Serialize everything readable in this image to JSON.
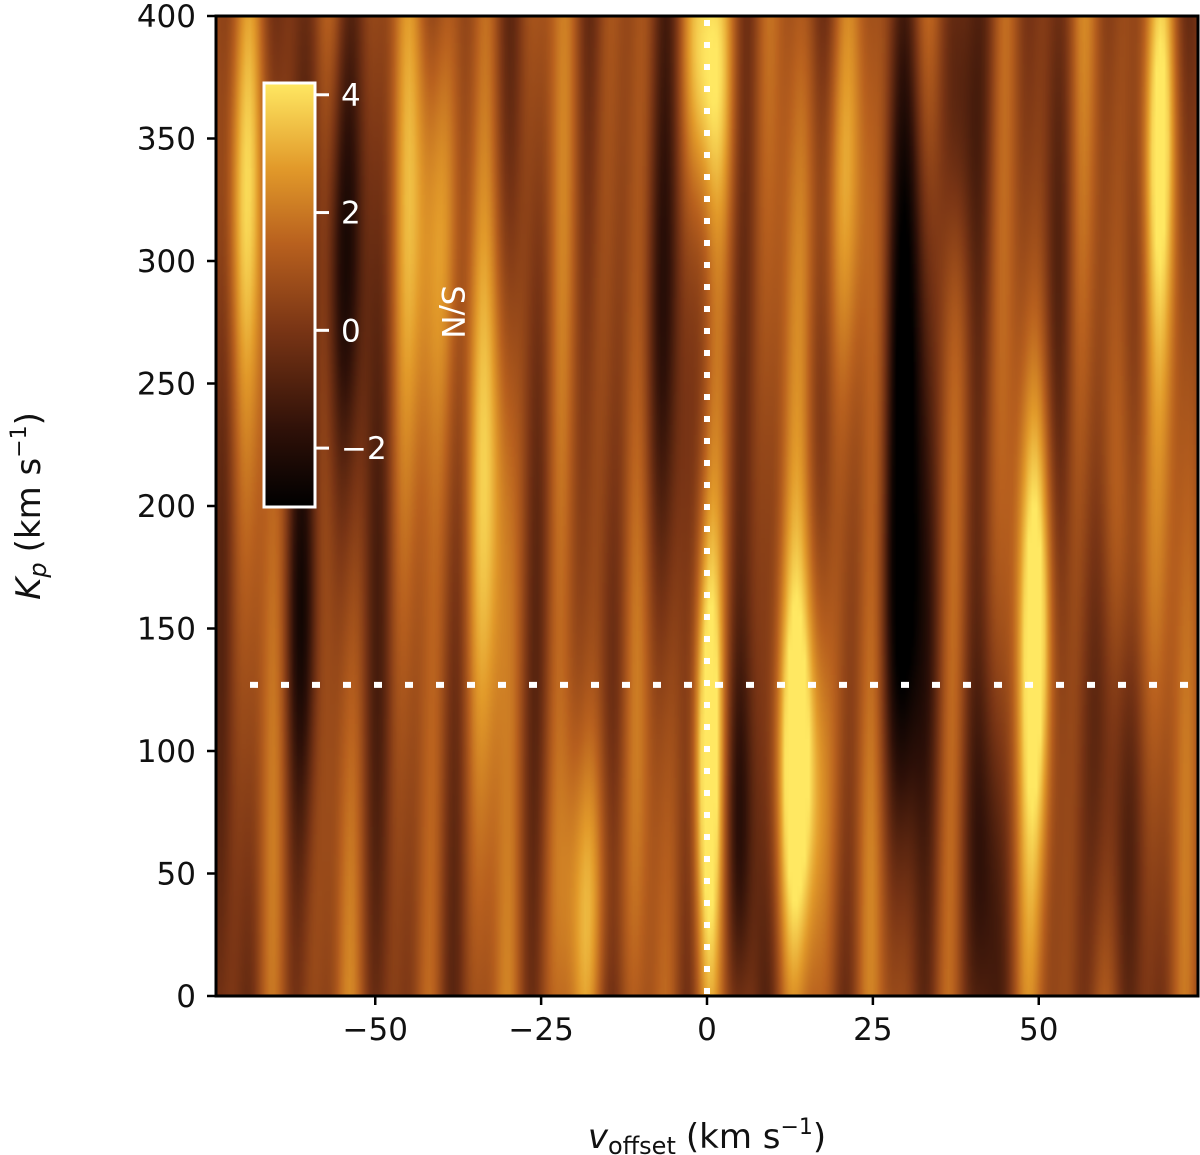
{
  "chart_data": {
    "type": "heatmap",
    "title": "",
    "xlabel": {
      "main": "v",
      "sub": "offset",
      "unit": "(km s",
      "exp": "−1",
      "close": ")"
    },
    "ylabel": {
      "main": "K",
      "sub": "p",
      "unit": "(km s",
      "exp": "−1",
      "close": ")"
    },
    "xlim": [
      -74,
      74
    ],
    "ylim": [
      0,
      400
    ],
    "x_ticks": [
      -50,
      -25,
      0,
      25,
      50
    ],
    "x_tick_labels": [
      "−50",
      "−25",
      "0",
      "25",
      "50"
    ],
    "y_ticks": [
      0,
      50,
      100,
      150,
      200,
      250,
      300,
      350,
      400
    ],
    "y_tick_labels": [
      "0",
      "50",
      "100",
      "150",
      "200",
      "250",
      "300",
      "350",
      "400"
    ],
    "colormap": "afmhot-like (black → brown → orange → yellow)",
    "colorbar": {
      "label": "S/N",
      "range": [
        -3,
        4.2
      ],
      "ticks": [
        4,
        2,
        0,
        -2
      ],
      "tick_labels": [
        "4",
        "2",
        "0",
        "−2"
      ],
      "placement": "inset upper-left"
    },
    "reference_lines": [
      {
        "orientation": "vertical",
        "value": 0,
        "style": "dotted",
        "color": "#ffffff"
      },
      {
        "orientation": "horizontal",
        "value": 127,
        "style": "dotted",
        "color": "#ffffff"
      }
    ],
    "features": [
      {
        "x": 0,
        "y": 100,
        "snr": 4.1,
        "sx": 1.6,
        "sy": 70
      },
      {
        "x": 0,
        "y": 380,
        "snr": 3.2,
        "sx": 2.5,
        "sy": 45
      },
      {
        "x": 14,
        "y": 90,
        "snr": 3.8,
        "sx": 3.0,
        "sy": 60
      },
      {
        "x": 50,
        "y": 150,
        "snr": 3.6,
        "sx": 2.0,
        "sy": 70
      },
      {
        "x": 31,
        "y": 270,
        "snr": -3.0,
        "sx": 2.5,
        "sy": 90
      },
      {
        "x": 30,
        "y": 140,
        "snr": -2.0,
        "sx": 3.0,
        "sy": 60
      },
      {
        "x": 5,
        "y": 60,
        "snr": -2.4,
        "sx": 1.6,
        "sy": 60
      },
      {
        "x": -55,
        "y": 300,
        "snr": -2.6,
        "sx": 2.5,
        "sy": 70
      },
      {
        "x": -61,
        "y": 150,
        "snr": -2.0,
        "sx": 2.0,
        "sy": 60
      },
      {
        "x": -41,
        "y": 320,
        "snr": 2.4,
        "sx": 3.0,
        "sy": 70
      },
      {
        "x": -32,
        "y": 210,
        "snr": 2.0,
        "sx": 3.0,
        "sy": 80
      },
      {
        "x": -18,
        "y": 40,
        "snr": 2.2,
        "sx": 3.5,
        "sy": 50
      },
      {
        "x": 20,
        "y": 330,
        "snr": 2.0,
        "sx": 3.5,
        "sy": 60
      },
      {
        "x": 68,
        "y": 350,
        "snr": 2.6,
        "sx": 2.0,
        "sy": 60
      },
      {
        "x": 60,
        "y": 100,
        "snr": -2.0,
        "sx": 2.0,
        "sy": 80
      },
      {
        "x": 42,
        "y": 50,
        "snr": -1.8,
        "sx": 2.0,
        "sy": 60
      },
      {
        "x": -8,
        "y": 260,
        "snr": -1.6,
        "sx": 2.5,
        "sy": 80
      },
      {
        "x": -70,
        "y": 330,
        "snr": 1.8,
        "sx": 2.5,
        "sy": 60
      },
      {
        "x": 64,
        "y": 180,
        "snr": 1.6,
        "sx": 2.5,
        "sy": 60
      },
      {
        "x": 38,
        "y": 360,
        "snr": -1.8,
        "sx": 2.0,
        "sy": 50
      }
    ],
    "background_snr": 0.7
  }
}
